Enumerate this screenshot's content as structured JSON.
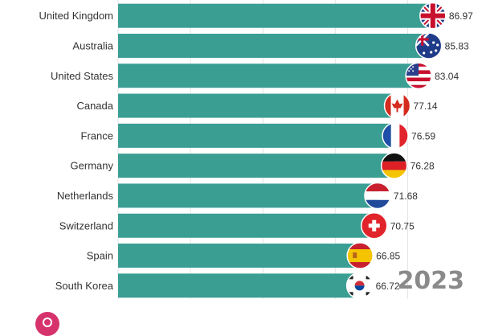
{
  "year": "2023",
  "colors": {
    "bar": "#3a9e93",
    "grid": "#e3e3e3",
    "text": "#333333"
  },
  "chart_data": {
    "type": "bar",
    "orientation": "horizontal",
    "categories": [
      "United Kingdom",
      "Australia",
      "United States",
      "Canada",
      "France",
      "Germany",
      "Netherlands",
      "Switzerland",
      "Spain",
      "South Korea"
    ],
    "values": [
      86.97,
      85.83,
      83.04,
      77.14,
      76.59,
      76.28,
      71.68,
      70.75,
      66.85,
      66.72
    ],
    "value_labels": [
      "86.97",
      "85.83",
      "83.04",
      "77.14",
      "76.59",
      "76.28",
      "71.68",
      "70.75",
      "66.85",
      "66.72"
    ],
    "flag_icons": [
      "uk-flag-icon",
      "australia-flag-icon",
      "usa-flag-icon",
      "canada-flag-icon",
      "france-flag-icon",
      "germany-flag-icon",
      "netherlands-flag-icon",
      "switzerland-flag-icon",
      "spain-flag-icon",
      "south-korea-flag-icon"
    ],
    "title": "",
    "xlabel": "",
    "ylabel": "",
    "xlim": [
      0,
      95
    ],
    "grid": true,
    "legend": "none"
  }
}
